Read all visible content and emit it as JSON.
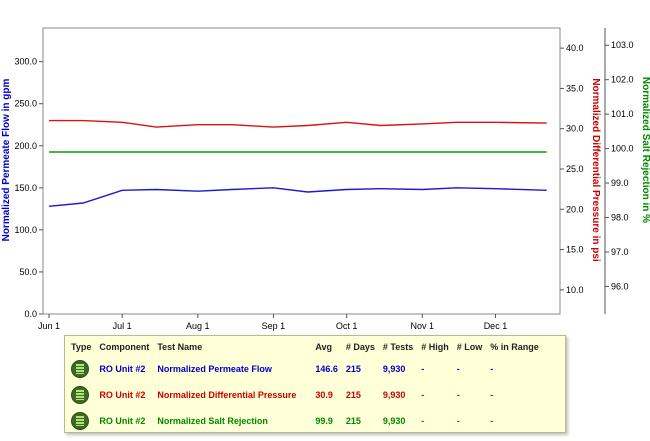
{
  "chart_data": {
    "type": "line",
    "x_tick_labels": [
      "Jun 1",
      "Jul 1",
      "Aug 1",
      "Sep 1",
      "Oct 1",
      "Nov 1",
      "Dec 1"
    ],
    "left_axis": {
      "label": "Normalized Permeate Flow in gpm",
      "color": "#0000cc",
      "ylim": [
        0,
        340
      ],
      "ticks": [
        "0.0",
        "50.0",
        "100.0",
        "150.0",
        "200.0",
        "250.0",
        "300.0"
      ]
    },
    "right_axis_1": {
      "label": "Normalized Differential Pressure in psi",
      "color": "#cc0000",
      "ylim": [
        7,
        42.5
      ],
      "ticks": [
        "10.0",
        "15.0",
        "20.0",
        "25.0",
        "30.0",
        "35.0",
        "40.0"
      ]
    },
    "right_axis_2": {
      "label": "Normalized Salt Rejection in %",
      "color": "#008800",
      "ylim": [
        95.2,
        103.5
      ],
      "ticks": [
        "96.0",
        "97.0",
        "98.0",
        "99.0",
        "100.0",
        "101.0",
        "102.0",
        "103.0"
      ]
    },
    "grid": false,
    "series": [
      {
        "name": "Normalized Permeate Flow",
        "axis": "left",
        "color": "#1a1ad6",
        "x": [
          "Jun 1",
          "Jun 15",
          "Jul 1",
          "Jul 15",
          "Aug 1",
          "Aug 15",
          "Sep 1",
          "Sep 15",
          "Oct 1",
          "Oct 15",
          "Nov 1",
          "Nov 15",
          "Dec 1",
          "Dec 22"
        ],
        "values": [
          128,
          132,
          147,
          148,
          146,
          148,
          150,
          145,
          148,
          149,
          148,
          150,
          149,
          147
        ]
      },
      {
        "name": "Normalized Differential Pressure",
        "axis": "right_1",
        "color": "#dd1111",
        "x": [
          "Jun 1",
          "Jun 15",
          "Jul 1",
          "Jul 15",
          "Aug 1",
          "Aug 15",
          "Sep 1",
          "Sep 15",
          "Oct 1",
          "Oct 15",
          "Nov 1",
          "Nov 15",
          "Dec 1",
          "Dec 22"
        ],
        "values": [
          31.0,
          31.0,
          30.8,
          30.2,
          30.5,
          30.5,
          30.2,
          30.4,
          30.8,
          30.4,
          30.6,
          30.8,
          30.8,
          30.7
        ]
      },
      {
        "name": "Normalized Salt Rejection",
        "axis": "right_2",
        "color": "#119911",
        "x": [
          "Jun 1",
          "Jun 15",
          "Jul 1",
          "Jul 15",
          "Aug 1",
          "Aug 15",
          "Sep 1",
          "Sep 15",
          "Oct 1",
          "Oct 15",
          "Nov 1",
          "Nov 15",
          "Dec 1",
          "Dec 22"
        ],
        "values": [
          99.9,
          99.9,
          99.9,
          99.9,
          99.9,
          99.9,
          99.9,
          99.9,
          99.9,
          99.9,
          99.9,
          99.9,
          99.9,
          99.9
        ]
      }
    ]
  },
  "legend_table": {
    "headers": [
      "Type",
      "Component",
      "Test Name",
      "Avg",
      "# Days",
      "# Tests",
      "# High",
      "# Low",
      "% in Range"
    ],
    "rows": [
      {
        "icon": "spreadsheet-icon",
        "component": "RO Unit #2",
        "test_name": "Normalized Permeate Flow",
        "avg": "146.6",
        "days": "215",
        "tests": "9,930",
        "high": "-",
        "low": "-",
        "in_range": "-",
        "color": "#0000cc"
      },
      {
        "icon": "spreadsheet-icon",
        "component": "RO Unit #2",
        "test_name": "Normalized Differential Pressure",
        "avg": "30.9",
        "days": "215",
        "tests": "9,930",
        "high": "-",
        "low": "-",
        "in_range": "-",
        "color": "#cc0000"
      },
      {
        "icon": "spreadsheet-icon",
        "component": "RO Unit #2",
        "test_name": "Normalized Salt Rejection",
        "avg": "99.9",
        "days": "215",
        "tests": "9,930",
        "high": "-",
        "low": "-",
        "in_range": "-",
        "color": "#008800"
      }
    ]
  }
}
